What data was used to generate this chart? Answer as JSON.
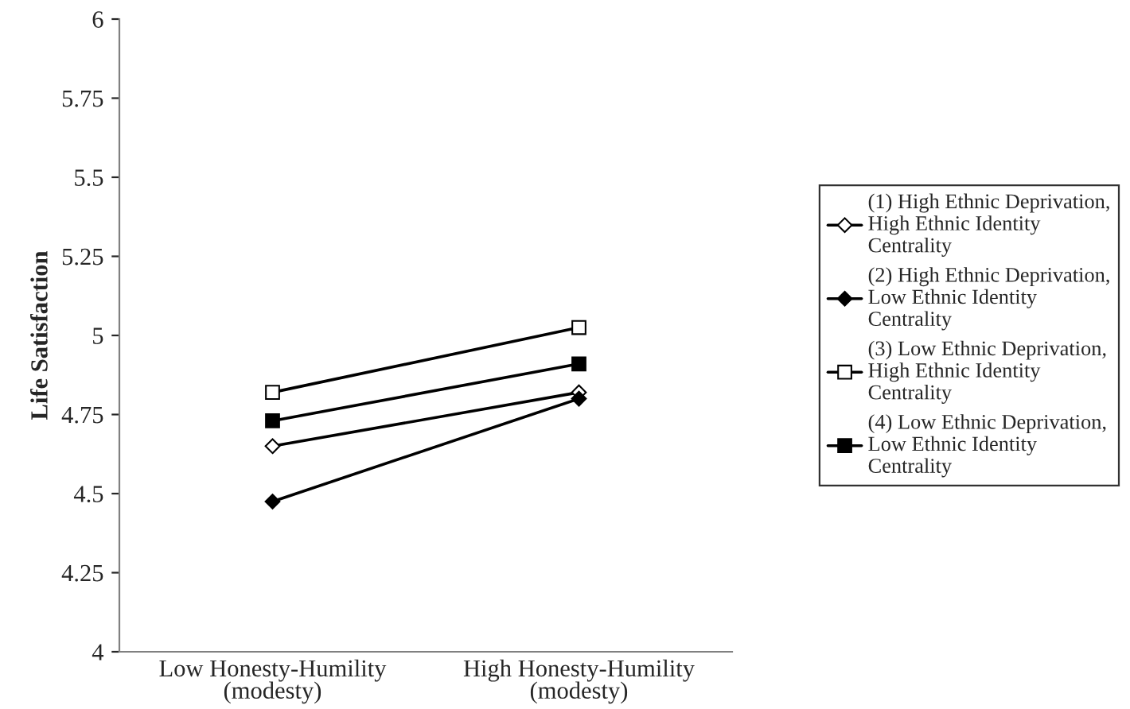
{
  "chart_data": {
    "type": "line",
    "ylabel": "Life Satisfaction",
    "categories": [
      "Low Honesty-Humility\n(modesty)",
      "High Honesty-Humility\n(modesty)"
    ],
    "series": [
      {
        "name": "(1) High Ethnic Deprivation,\nHigh Ethnic Identity\nCentrality",
        "color": "#ffffff",
        "marker": "diamond",
        "values": [
          4.65,
          4.82
        ]
      },
      {
        "name": "(2) High Ethnic Deprivation,\nLow Ethnic Identity\nCentrality",
        "color": "#000000",
        "marker": "diamond",
        "values": [
          4.475,
          4.8
        ]
      },
      {
        "name": "(3) Low Ethnic Deprivation,\nHigh Ethnic Identity\nCentrality",
        "color": "#ffffff",
        "marker": "square",
        "values": [
          4.82,
          5.025
        ]
      },
      {
        "name": "(4) Low Ethnic Deprivation,\nLow Ethnic Identity\nCentrality",
        "color": "#000000",
        "marker": "square",
        "values": [
          4.73,
          4.91
        ]
      }
    ],
    "ylim": [
      4,
      6
    ],
    "yticks": [
      4,
      4.25,
      4.5,
      4.75,
      5,
      5.25,
      5.5,
      5.75,
      6
    ],
    "grid": false,
    "legend": "right",
    "line_style": "solid"
  }
}
